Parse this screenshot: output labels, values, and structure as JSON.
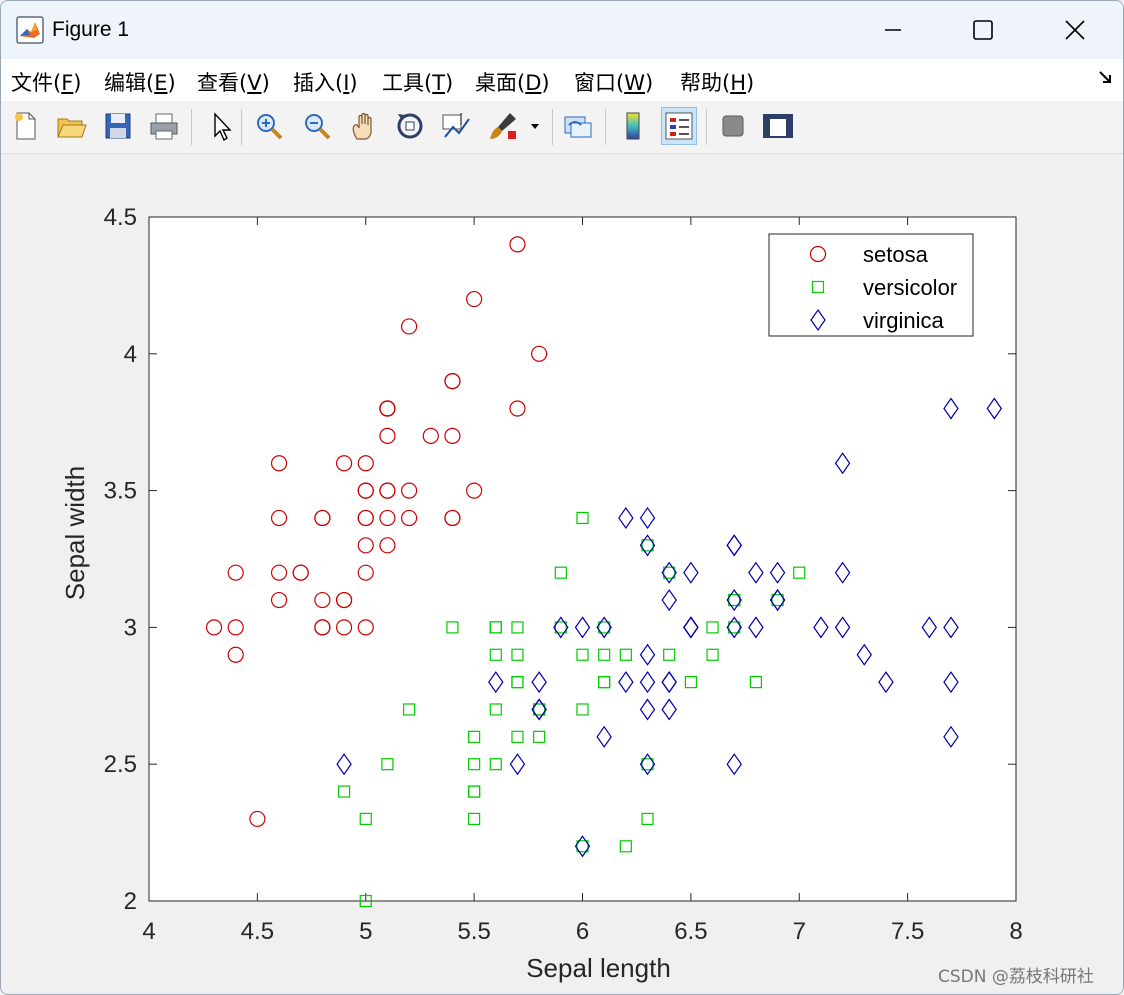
{
  "window": {
    "title": "Figure 1"
  },
  "menu": [
    {
      "pre": "文件(",
      "key": "F",
      "post": ")"
    },
    {
      "pre": "编辑(",
      "key": "E",
      "post": ")"
    },
    {
      "pre": "查看(",
      "key": "V",
      "post": ")"
    },
    {
      "pre": "插入(",
      "key": "I",
      "post": ")"
    },
    {
      "pre": "工具(",
      "key": "T",
      "post": ")"
    },
    {
      "pre": "桌面(",
      "key": "D",
      "post": ")"
    },
    {
      "pre": "窗口(",
      "key": "W",
      "post": ")"
    },
    {
      "pre": "帮助(",
      "key": "H",
      "post": ")"
    }
  ],
  "toolbar": {
    "buttons": [
      "new-figure-icon",
      "open-file-icon",
      "save-icon",
      "print-icon",
      "pointer-icon",
      "zoom-in-icon",
      "zoom-out-icon",
      "pan-icon",
      "rotate-3d-icon",
      "data-cursor-icon",
      "brush-icon",
      "link-plot-icon",
      "colorbar-icon",
      "legend-icon",
      "hide-plot-tools-icon",
      "show-plot-tools-icon"
    ],
    "active": "legend-icon"
  },
  "watermark": "CSDN @荔枝科研社",
  "chart_data": {
    "type": "scatter",
    "xlabel": "Sepal length",
    "ylabel": "Sepal width",
    "xlim": [
      4,
      8
    ],
    "ylim": [
      2,
      4.5
    ],
    "xticks": [
      "4",
      "4.5",
      "5",
      "5.5",
      "6",
      "6.5",
      "7",
      "7.5",
      "8"
    ],
    "yticks": [
      "2",
      "2.5",
      "3",
      "3.5",
      "4",
      "4.5"
    ],
    "legend_position": "top-right",
    "series": [
      {
        "name": "setosa",
        "marker": "circle",
        "color": "#cc0000",
        "points": [
          [
            5.1,
            3.5
          ],
          [
            4.9,
            3.0
          ],
          [
            4.7,
            3.2
          ],
          [
            4.6,
            3.1
          ],
          [
            5.0,
            3.6
          ],
          [
            5.4,
            3.9
          ],
          [
            4.6,
            3.4
          ],
          [
            5.0,
            3.4
          ],
          [
            4.4,
            2.9
          ],
          [
            4.9,
            3.1
          ],
          [
            5.4,
            3.7
          ],
          [
            4.8,
            3.4
          ],
          [
            4.8,
            3.0
          ],
          [
            4.3,
            3.0
          ],
          [
            5.8,
            4.0
          ],
          [
            5.7,
            4.4
          ],
          [
            5.4,
            3.9
          ],
          [
            5.1,
            3.5
          ],
          [
            5.7,
            3.8
          ],
          [
            5.1,
            3.8
          ],
          [
            5.4,
            3.4
          ],
          [
            5.1,
            3.7
          ],
          [
            4.6,
            3.6
          ],
          [
            5.1,
            3.3
          ],
          [
            4.8,
            3.4
          ],
          [
            5.0,
            3.0
          ],
          [
            5.0,
            3.4
          ],
          [
            5.2,
            3.5
          ],
          [
            5.2,
            3.4
          ],
          [
            4.7,
            3.2
          ],
          [
            4.8,
            3.1
          ],
          [
            5.4,
            3.4
          ],
          [
            5.2,
            4.1
          ],
          [
            5.5,
            4.2
          ],
          [
            4.9,
            3.1
          ],
          [
            5.0,
            3.2
          ],
          [
            5.5,
            3.5
          ],
          [
            4.9,
            3.6
          ],
          [
            4.4,
            3.0
          ],
          [
            5.1,
            3.4
          ],
          [
            5.0,
            3.5
          ],
          [
            4.5,
            2.3
          ],
          [
            4.4,
            3.2
          ],
          [
            5.0,
            3.5
          ],
          [
            5.1,
            3.8
          ],
          [
            4.8,
            3.0
          ],
          [
            5.1,
            3.8
          ],
          [
            4.6,
            3.2
          ],
          [
            5.3,
            3.7
          ],
          [
            5.0,
            3.3
          ]
        ]
      },
      {
        "name": "versicolor",
        "marker": "square",
        "color": "#00cc00",
        "points": [
          [
            7.0,
            3.2
          ],
          [
            6.4,
            3.2
          ],
          [
            6.9,
            3.1
          ],
          [
            5.5,
            2.3
          ],
          [
            6.5,
            2.8
          ],
          [
            5.7,
            2.8
          ],
          [
            6.3,
            3.3
          ],
          [
            4.9,
            2.4
          ],
          [
            6.6,
            2.9
          ],
          [
            5.2,
            2.7
          ],
          [
            5.0,
            2.0
          ],
          [
            5.9,
            3.0
          ],
          [
            6.0,
            2.2
          ],
          [
            6.1,
            2.9
          ],
          [
            5.6,
            2.9
          ],
          [
            6.7,
            3.1
          ],
          [
            5.6,
            3.0
          ],
          [
            5.8,
            2.7
          ],
          [
            6.2,
            2.2
          ],
          [
            5.6,
            2.5
          ],
          [
            5.9,
            3.2
          ],
          [
            6.1,
            2.8
          ],
          [
            6.3,
            2.5
          ],
          [
            6.1,
            2.8
          ],
          [
            6.4,
            2.9
          ],
          [
            6.6,
            3.0
          ],
          [
            6.8,
            2.8
          ],
          [
            6.7,
            3.0
          ],
          [
            6.0,
            2.9
          ],
          [
            5.7,
            2.6
          ],
          [
            5.5,
            2.4
          ],
          [
            5.5,
            2.4
          ],
          [
            5.8,
            2.7
          ],
          [
            6.0,
            2.7
          ],
          [
            5.4,
            3.0
          ],
          [
            6.0,
            3.4
          ],
          [
            6.7,
            3.1
          ],
          [
            6.3,
            2.3
          ],
          [
            5.6,
            3.0
          ],
          [
            5.5,
            2.5
          ],
          [
            5.5,
            2.6
          ],
          [
            6.1,
            3.0
          ],
          [
            5.8,
            2.6
          ],
          [
            5.0,
            2.3
          ],
          [
            5.6,
            2.7
          ],
          [
            5.7,
            3.0
          ],
          [
            5.7,
            2.9
          ],
          [
            6.2,
            2.9
          ],
          [
            5.1,
            2.5
          ],
          [
            5.7,
            2.8
          ]
        ]
      },
      {
        "name": "virginica",
        "marker": "diamond",
        "color": "#0000aa",
        "points": [
          [
            6.3,
            3.3
          ],
          [
            5.8,
            2.7
          ],
          [
            7.1,
            3.0
          ],
          [
            6.3,
            2.9
          ],
          [
            6.5,
            3.0
          ],
          [
            7.6,
            3.0
          ],
          [
            4.9,
            2.5
          ],
          [
            7.3,
            2.9
          ],
          [
            6.7,
            2.5
          ],
          [
            7.2,
            3.6
          ],
          [
            6.5,
            3.2
          ],
          [
            6.4,
            2.7
          ],
          [
            6.8,
            3.0
          ],
          [
            5.7,
            2.5
          ],
          [
            5.8,
            2.8
          ],
          [
            6.4,
            3.2
          ],
          [
            6.5,
            3.0
          ],
          [
            7.7,
            3.8
          ],
          [
            7.7,
            2.6
          ],
          [
            6.0,
            2.2
          ],
          [
            6.9,
            3.2
          ],
          [
            5.6,
            2.8
          ],
          [
            7.7,
            2.8
          ],
          [
            6.3,
            2.7
          ],
          [
            6.7,
            3.3
          ],
          [
            7.2,
            3.2
          ],
          [
            6.2,
            2.8
          ],
          [
            6.1,
            3.0
          ],
          [
            6.4,
            2.8
          ],
          [
            7.2,
            3.0
          ],
          [
            7.4,
            2.8
          ],
          [
            7.9,
            3.8
          ],
          [
            6.4,
            2.8
          ],
          [
            6.3,
            2.8
          ],
          [
            6.1,
            2.6
          ],
          [
            7.7,
            3.0
          ],
          [
            6.3,
            3.4
          ],
          [
            6.4,
            3.1
          ],
          [
            6.0,
            3.0
          ],
          [
            6.9,
            3.1
          ],
          [
            6.7,
            3.1
          ],
          [
            6.9,
            3.1
          ],
          [
            5.8,
            2.7
          ],
          [
            6.8,
            3.2
          ],
          [
            6.7,
            3.3
          ],
          [
            6.7,
            3.0
          ],
          [
            6.3,
            2.5
          ],
          [
            6.5,
            3.0
          ],
          [
            6.2,
            3.4
          ],
          [
            5.9,
            3.0
          ]
        ]
      }
    ]
  }
}
